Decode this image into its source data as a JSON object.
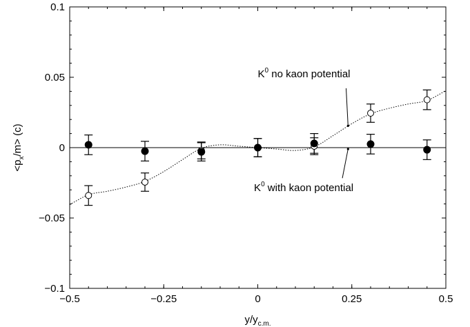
{
  "chart_data": {
    "type": "scatter",
    "xlabel": {
      "main": "y/y",
      "sub": "c.m."
    },
    "ylabel": {
      "main": "<p",
      "sub": "x",
      "rest": "/m> (c)"
    },
    "xlim": [
      -0.5,
      0.5
    ],
    "ylim": [
      -0.1,
      0.1
    ],
    "x_ticks": [
      -0.5,
      -0.25,
      0,
      0.25,
      0.5
    ],
    "x_tick_labels": [
      "−0.5",
      "−0.25",
      "0",
      "0.25",
      "0.5"
    ],
    "y_ticks": [
      -0.1,
      -0.05,
      0,
      0.05,
      0.1
    ],
    "y_tick_labels": [
      "−0.1",
      "−0.05",
      "0",
      "0.05",
      "0.1"
    ],
    "grid": false,
    "zero_line": true,
    "series": [
      {
        "name": "K0 no kaon potential",
        "marker": "open-circle",
        "x": [
          -0.45,
          -0.3,
          -0.15,
          0,
          0.15,
          0.3,
          0.45
        ],
        "y": [
          -0.034,
          -0.0245,
          -0.002,
          0.0,
          0.001,
          0.0245,
          0.034
        ],
        "yerr": [
          0.007,
          0.0065,
          0.006,
          0.0065,
          0.006,
          0.0065,
          0.007
        ]
      },
      {
        "name": "K0 with kaon potential",
        "marker": "filled-circle",
        "x": [
          -0.45,
          -0.3,
          -0.15,
          0,
          0.15,
          0.3,
          0.45
        ],
        "y": [
          0.002,
          -0.0025,
          -0.003,
          0.0,
          0.003,
          0.0025,
          -0.0015
        ],
        "yerr": [
          0.007,
          0.007,
          0.0065,
          0.0065,
          0.007,
          0.007,
          0.007
        ]
      }
    ],
    "fit_curve": {
      "style": "dotted",
      "x": [
        -0.5,
        -0.45,
        -0.4,
        -0.35,
        -0.3,
        -0.25,
        -0.2,
        -0.15,
        -0.1,
        -0.05,
        0,
        0.05,
        0.1,
        0.15,
        0.2,
        0.25,
        0.3,
        0.35,
        0.4,
        0.45,
        0.5
      ],
      "y": [
        -0.0405,
        -0.0335,
        -0.031,
        -0.028,
        -0.024,
        -0.017,
        -0.0085,
        -0.0005,
        0.002,
        0.001,
        0.0,
        -0.001,
        -0.002,
        0.0005,
        0.0085,
        0.017,
        0.024,
        0.028,
        0.031,
        0.0335,
        0.0405
      ]
    },
    "annotations": [
      {
        "base": "K",
        "sup": "0",
        "text": " no kaon potential",
        "text_anchor": [
          0.0,
          0.05
        ],
        "arrow_to": [
          0.24,
          0.0155
        ]
      },
      {
        "base": "K",
        "sup": "0",
        "text": " with kaon potential",
        "text_anchor": [
          -0.01,
          -0.031
        ],
        "arrow_to": [
          0.24,
          -0.001
        ]
      }
    ]
  }
}
